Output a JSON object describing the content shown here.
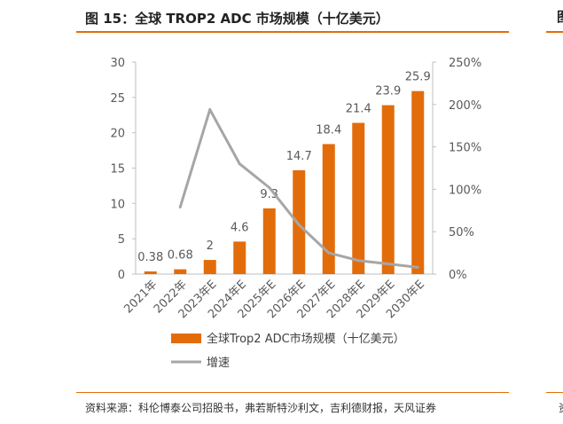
{
  "header": {
    "title": "图 15：全球 TROP2 ADC 市场规模（十亿美元）"
  },
  "footer": {
    "source": "资料来源：科伦博泰公司招股书，弗若斯特沙利文，吉利德财报，天风证券"
  },
  "edge": {
    "title_fragment": "图",
    "source_fragment": "资"
  },
  "chart_data": {
    "type": "bar",
    "categories": [
      "2021年",
      "2022年",
      "2023年E",
      "2024年E",
      "2025年E",
      "2026年E",
      "2027年E",
      "2028年E",
      "2029年E",
      "2030年E"
    ],
    "series": [
      {
        "name": "全球Trop2 ADC市场规模（十亿美元）",
        "type": "bar",
        "axis": "left",
        "values": [
          0.38,
          0.68,
          2,
          4.6,
          9.3,
          14.7,
          18.4,
          21.4,
          23.9,
          25.9
        ],
        "value_labels": [
          "0.38",
          "0.68",
          "2",
          "4.6",
          "9.3",
          "14.7",
          "18.4",
          "21.4",
          "23.9",
          "25.9"
        ],
        "color": "#e36c0a"
      },
      {
        "name": "增速",
        "type": "line",
        "axis": "right",
        "values": [
          null,
          79,
          194,
          130,
          102,
          58,
          25,
          16,
          12,
          8
        ],
        "unit": "%",
        "color": "#a6a6a6"
      }
    ],
    "y_left": {
      "ylim": [
        0,
        30
      ],
      "ticks": [
        "0",
        "5",
        "10",
        "15",
        "20",
        "25",
        "30"
      ]
    },
    "y_right": {
      "ylim": [
        0,
        250
      ],
      "ticks": [
        "0%",
        "50%",
        "100%",
        "150%",
        "200%",
        "250%"
      ]
    },
    "grid": false,
    "legend": "bottom"
  }
}
